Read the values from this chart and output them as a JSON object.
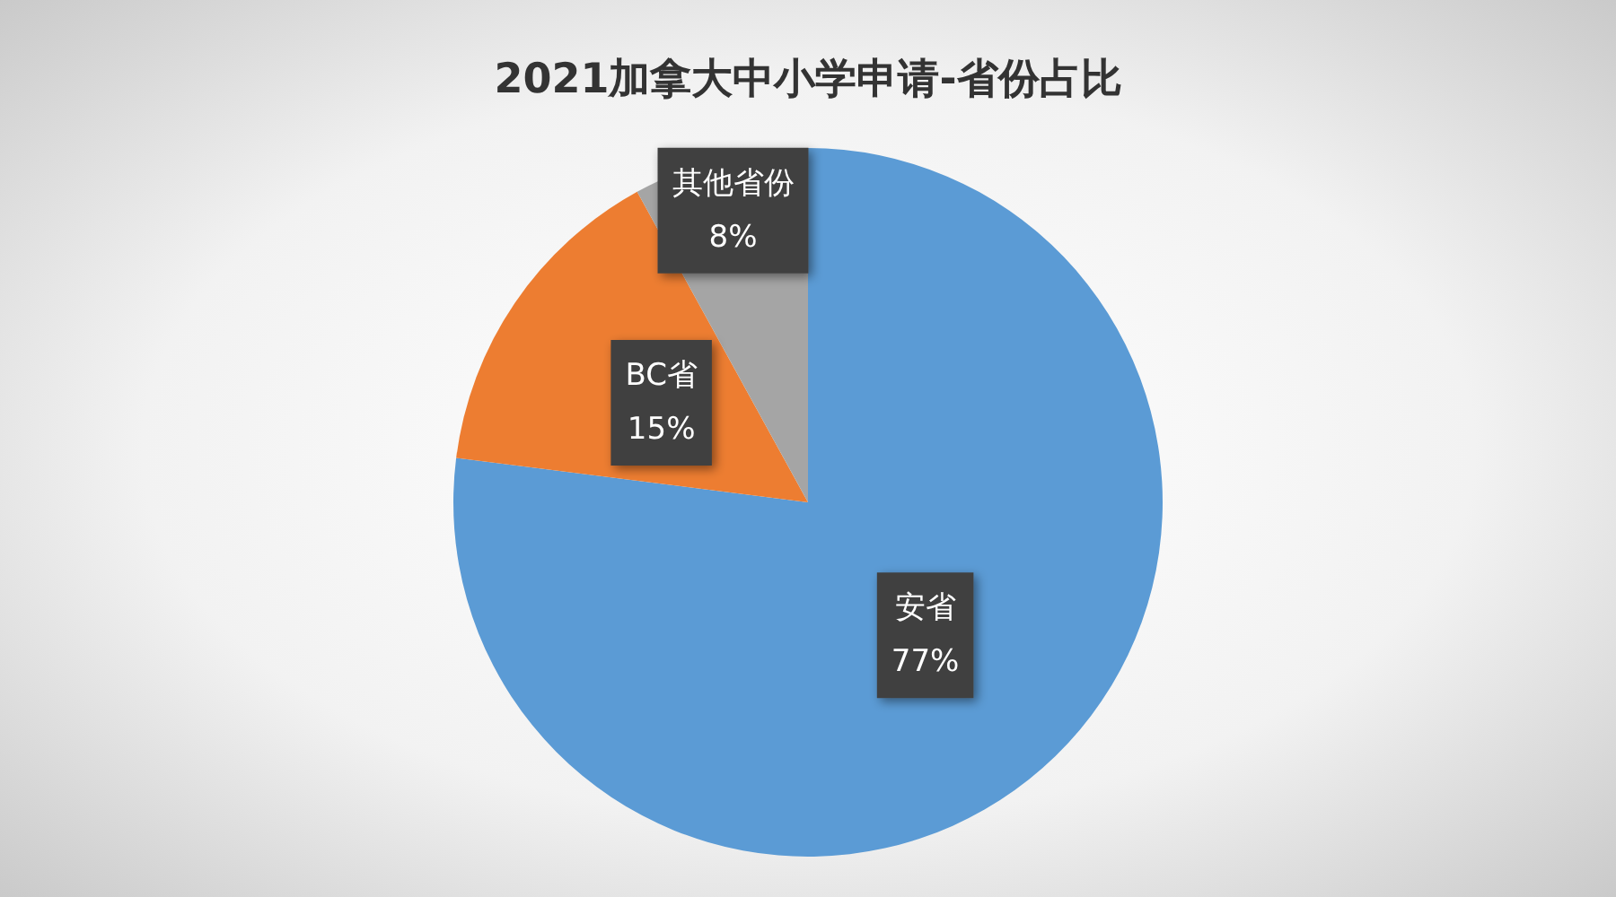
{
  "chart_data": {
    "type": "pie",
    "title": "2021加拿大中小学申请-省份占比",
    "categories": [
      "安省",
      "BC省",
      "其他省份"
    ],
    "values": [
      77,
      15,
      8
    ],
    "colors": [
      "#5b9bd5",
      "#ed7d31",
      "#a5a5a5"
    ],
    "value_labels": [
      "77%",
      "15%",
      "8%"
    ]
  }
}
